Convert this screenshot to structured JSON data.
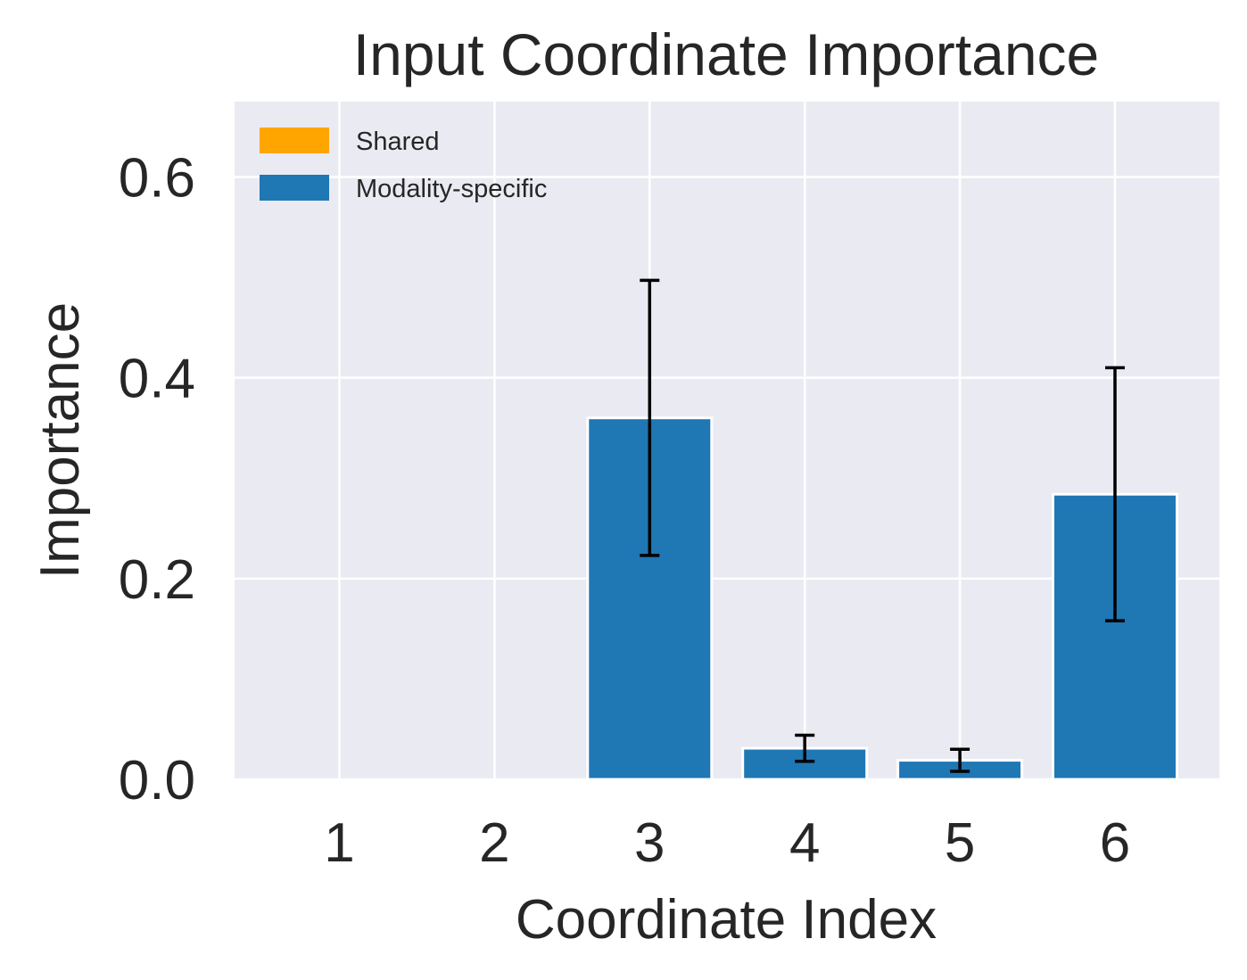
{
  "chart_data": {
    "type": "bar",
    "title": "Input Coordinate Importance",
    "xlabel": "Coordinate Index",
    "ylabel": "Importance",
    "categories": [
      "1",
      "2",
      "3",
      "4",
      "5",
      "6"
    ],
    "series": [
      {
        "name": "Shared",
        "color": "#ffa500",
        "values": [
          0,
          0,
          0,
          0,
          0,
          0
        ],
        "errors": [
          0,
          0,
          0,
          0,
          0,
          0
        ]
      },
      {
        "name": "Modality-specific",
        "color": "#1f77b4",
        "values": [
          0.0,
          0.0,
          0.36,
          0.031,
          0.019,
          0.284
        ],
        "errors": [
          0.0,
          0.0,
          0.137,
          0.013,
          0.011,
          0.126
        ]
      }
    ],
    "ylim": [
      0,
      0.675
    ],
    "yticks": [
      0.0,
      0.2,
      0.4,
      0.6
    ],
    "ytick_labels": [
      "0.0",
      "0.2",
      "0.4",
      "0.6"
    ],
    "grid": true,
    "legend_position": "top-left",
    "background": "#eaeaf2"
  }
}
